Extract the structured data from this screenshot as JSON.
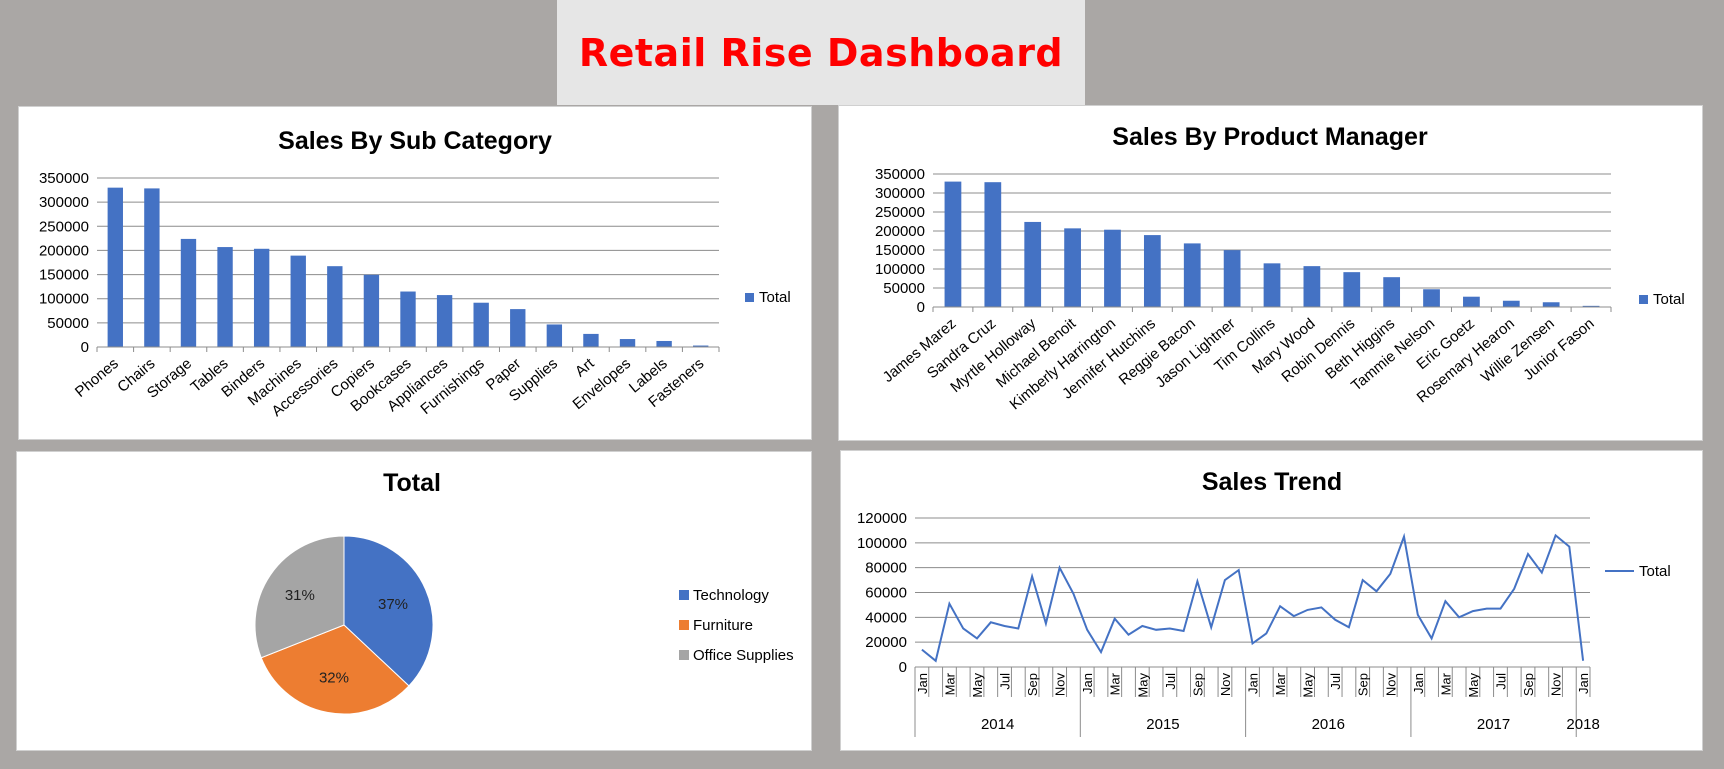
{
  "dashboard": {
    "title": "Retail Rise Dashboard"
  },
  "chart_data": [
    {
      "id": "subcat",
      "type": "bar",
      "title": "Sales By Sub Category",
      "categories": [
        "Phones",
        "Chairs",
        "Storage",
        "Tables",
        "Binders",
        "Machines",
        "Accessories",
        "Copiers",
        "Bookcases",
        "Appliances",
        "Furnishings",
        "Paper",
        "Supplies",
        "Art",
        "Envelopes",
        "Labels",
        "Fasteners"
      ],
      "series": [
        {
          "name": "Total",
          "values": [
            330007,
            328449,
            223844,
            206966,
            203413,
            189239,
            167380,
            149528,
            114880,
            107532,
            91705,
            78479,
            46674,
            27119,
            16476,
            12486,
            3024
          ]
        }
      ],
      "ylim": [
        0,
        350000
      ],
      "yticks": [
        0,
        50000,
        100000,
        150000,
        200000,
        250000,
        300000,
        350000
      ],
      "grid": true,
      "legend": "right",
      "color": "#4472c4"
    },
    {
      "id": "manager",
      "type": "bar",
      "title": "Sales By Product Manager",
      "categories": [
        "James Marez",
        "Sandra Cruz",
        "Myrtle Holloway",
        "Michael Benoit",
        "Kimberly Harrington",
        "Jennifer Hutchins",
        "Reggie Bacon",
        "Jason Lightner",
        "Tim Collins",
        "Mary Wood",
        "Robin Dennis",
        "Beth Higgins",
        "Tammie Nelson",
        "Eric Goetz",
        "Rosemary Hearon",
        "Willie Zensen",
        "Junior Fason"
      ],
      "series": [
        {
          "name": "Total",
          "values": [
            330007,
            328449,
            223844,
            206966,
            203413,
            189239,
            167380,
            149528,
            114880,
            107532,
            91705,
            78479,
            46674,
            27119,
            16476,
            12486,
            3024
          ]
        }
      ],
      "ylim": [
        0,
        350000
      ],
      "yticks": [
        0,
        50000,
        100000,
        150000,
        200000,
        250000,
        300000,
        350000
      ],
      "grid": true,
      "legend": "right",
      "color": "#4472c4"
    },
    {
      "id": "pie",
      "type": "pie",
      "title": "Total",
      "slices": [
        {
          "label": "Technology",
          "value": 37,
          "text": "37%",
          "color": "#4472c4"
        },
        {
          "label": "Furniture",
          "value": 32,
          "text": "32%",
          "color": "#ed7d31"
        },
        {
          "label": "Office Supplies",
          "value": 31,
          "text": "31%",
          "color": "#a5a5a5"
        }
      ],
      "legend": "right"
    },
    {
      "id": "trend",
      "type": "line",
      "title": "Sales Trend",
      "x": [
        "2014-01",
        "2014-02",
        "2014-03",
        "2014-04",
        "2014-05",
        "2014-06",
        "2014-07",
        "2014-08",
        "2014-09",
        "2014-10",
        "2014-11",
        "2014-12",
        "2015-01",
        "2015-02",
        "2015-03",
        "2015-04",
        "2015-05",
        "2015-06",
        "2015-07",
        "2015-08",
        "2015-09",
        "2015-10",
        "2015-11",
        "2015-12",
        "2016-01",
        "2016-02",
        "2016-03",
        "2016-04",
        "2016-05",
        "2016-06",
        "2016-07",
        "2016-08",
        "2016-09",
        "2016-10",
        "2016-11",
        "2016-12",
        "2017-01",
        "2017-02",
        "2017-03",
        "2017-04",
        "2017-05",
        "2017-06",
        "2017-07",
        "2017-08",
        "2017-09",
        "2017-10",
        "2017-11",
        "2017-12",
        "2018-01"
      ],
      "series": [
        {
          "name": "Total",
          "values": [
            14000,
            5000,
            51000,
            31000,
            23000,
            36000,
            33000,
            31000,
            73000,
            35000,
            80000,
            59000,
            30000,
            12000,
            39000,
            26000,
            33000,
            30000,
            31000,
            29000,
            69000,
            32000,
            70000,
            78000,
            19000,
            27000,
            49000,
            41000,
            46000,
            48000,
            38000,
            32000,
            70000,
            61000,
            75000,
            105000,
            42000,
            23000,
            53000,
            40000,
            45000,
            47000,
            47000,
            63000,
            91000,
            76000,
            106000,
            97000,
            5000
          ]
        }
      ],
      "month_labels": [
        "Jan",
        "Mar",
        "May",
        "Jul",
        "Sep",
        "Nov"
      ],
      "year_labels": [
        "2014",
        "2015",
        "2016",
        "2017",
        "2018"
      ],
      "ylim": [
        0,
        120000
      ],
      "yticks": [
        0,
        20000,
        40000,
        60000,
        80000,
        100000,
        120000
      ],
      "grid": true,
      "legend": "right",
      "color": "#4472c4"
    }
  ]
}
